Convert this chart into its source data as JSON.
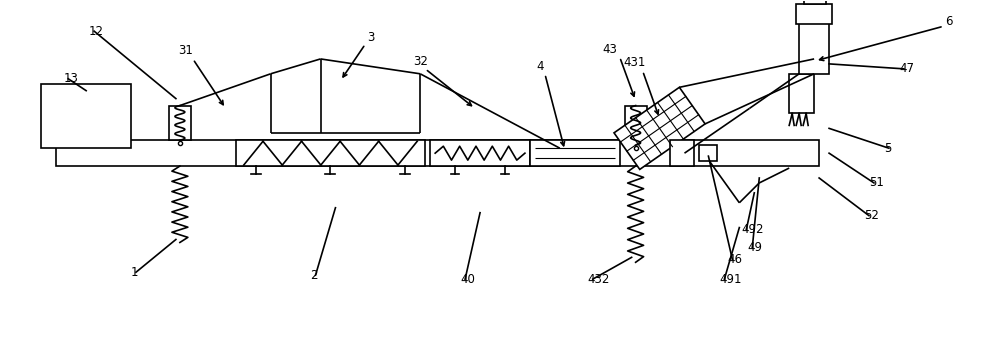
{
  "bg_color": "#ffffff",
  "line_color": "#000000",
  "fig_width": 10.0,
  "fig_height": 3.48,
  "dpi": 100
}
